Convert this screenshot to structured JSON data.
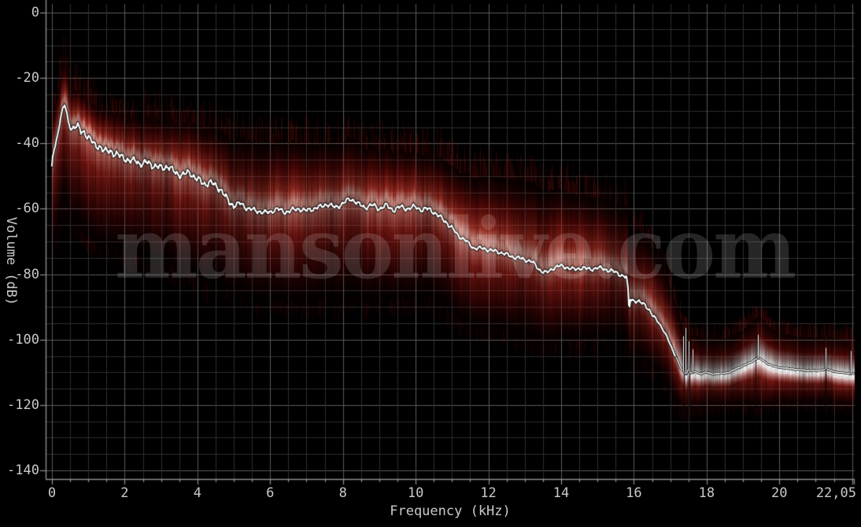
{
  "chart_data": {
    "type": "area",
    "subtype": "audio-frequency-analysis-spectrum",
    "xlabel": "Frequency (kHz)",
    "ylabel": "Volume (dB)",
    "xlim": [
      0,
      22.05
    ],
    "ylim": [
      -142.6,
      2.6
    ],
    "x_ticks": [
      {
        "v": 0,
        "label": "0"
      },
      {
        "v": 2,
        "label": "2"
      },
      {
        "v": 4,
        "label": "4"
      },
      {
        "v": 6,
        "label": "6"
      },
      {
        "v": 8,
        "label": "8"
      },
      {
        "v": 10,
        "label": "10"
      },
      {
        "v": 12,
        "label": "12"
      },
      {
        "v": 14,
        "label": "14"
      },
      {
        "v": 16,
        "label": "16"
      },
      {
        "v": 18,
        "label": "18"
      },
      {
        "v": 20,
        "label": "20"
      },
      {
        "v": 22.05,
        "label": "22,05"
      }
    ],
    "y_ticks": [
      {
        "v": 0,
        "label": "0"
      },
      {
        "v": -20,
        "label": "-20"
      },
      {
        "v": -40,
        "label": "-40"
      },
      {
        "v": -60,
        "label": "-60"
      },
      {
        "v": -80,
        "label": "-80"
      },
      {
        "v": -100,
        "label": "-100"
      },
      {
        "v": -120,
        "label": "-120"
      },
      {
        "v": -140,
        "label": "-140"
      }
    ],
    "grid": {
      "minor_x_step_khz": 0.5,
      "major_x_step_khz": 2,
      "minor_y_step_db": 5,
      "major_y_step_db": 20,
      "visible": true
    },
    "legend": "none",
    "watermark": "mansonlive.com",
    "colors": {
      "background": "#000000",
      "grid_minor": "#2e2e2e",
      "grid_major": "#5a5a5a",
      "axis": "#8f8f8f",
      "tick_label": "#c9c9c9",
      "average_line": "#ffffff",
      "line_outline": "#000000",
      "cloud_deep_red": "#500202",
      "cloud_red": "#981010",
      "cloud_bright": "#f0a89c",
      "white_band": "#ffffff"
    },
    "series": {
      "average_level_db": [
        [
          0,
          -47.3
        ],
        [
          0.02,
          -44
        ],
        [
          0.06,
          -42
        ],
        [
          0.1,
          -40.5
        ],
        [
          0.15,
          -37.5
        ],
        [
          0.2,
          -34.5
        ],
        [
          0.25,
          -31.5
        ],
        [
          0.3,
          -29.2
        ],
        [
          0.35,
          -28.2
        ],
        [
          0.4,
          -30.5
        ],
        [
          0.45,
          -33.5
        ],
        [
          0.5,
          -35
        ],
        [
          0.55,
          -35.5
        ],
        [
          0.62,
          -34.6
        ],
        [
          0.7,
          -34.8
        ],
        [
          0.8,
          -36.5
        ],
        [
          0.9,
          -36.6
        ],
        [
          1,
          -38
        ],
        [
          1.1,
          -39.5
        ],
        [
          1.2,
          -41
        ],
        [
          1.3,
          -40.6
        ],
        [
          1.4,
          -42
        ],
        [
          1.5,
          -42.6
        ],
        [
          1.6,
          -42.2
        ],
        [
          1.7,
          -43
        ],
        [
          1.8,
          -43.6
        ],
        [
          1.9,
          -44
        ],
        [
          2,
          -44.4
        ],
        [
          2.1,
          -45.2
        ],
        [
          2.2,
          -45.6
        ],
        [
          2.3,
          -45
        ],
        [
          2.4,
          -46
        ],
        [
          2.5,
          -46.4
        ],
        [
          2.6,
          -45.8
        ],
        [
          2.7,
          -46.2
        ],
        [
          2.8,
          -46.8
        ],
        [
          2.9,
          -47.2
        ],
        [
          3,
          -47.6
        ],
        [
          3.1,
          -47.2
        ],
        [
          3.2,
          -47
        ],
        [
          3.3,
          -48.2
        ],
        [
          3.4,
          -49
        ],
        [
          3.5,
          -49.4
        ],
        [
          3.6,
          -49.6
        ],
        [
          3.7,
          -49.2
        ],
        [
          3.8,
          -49
        ],
        [
          3.9,
          -50
        ],
        [
          4,
          -51
        ],
        [
          4.1,
          -51.8
        ],
        [
          4.2,
          -52.4
        ],
        [
          4.3,
          -52
        ],
        [
          4.4,
          -52.2
        ],
        [
          4.5,
          -53
        ],
        [
          4.6,
          -53.6
        ],
        [
          4.7,
          -55
        ],
        [
          4.8,
          -57
        ],
        [
          4.9,
          -58.2
        ],
        [
          5,
          -59
        ],
        [
          5.1,
          -58.6
        ],
        [
          5.2,
          -58.4
        ],
        [
          5.3,
          -59.4
        ],
        [
          5.4,
          -60
        ],
        [
          5.5,
          -60.2
        ],
        [
          5.6,
          -60.6
        ],
        [
          5.7,
          -60.8
        ],
        [
          5.8,
          -61
        ],
        [
          5.9,
          -61.2
        ],
        [
          6,
          -61
        ],
        [
          6.1,
          -60.4
        ],
        [
          6.2,
          -60
        ],
        [
          6.3,
          -60.6
        ],
        [
          6.4,
          -61
        ],
        [
          6.5,
          -60.8
        ],
        [
          6.6,
          -60.4
        ],
        [
          6.7,
          -60.2
        ],
        [
          6.8,
          -60
        ],
        [
          6.9,
          -60.4
        ],
        [
          7,
          -60.6
        ],
        [
          7.1,
          -60.2
        ],
        [
          7.2,
          -60
        ],
        [
          7.3,
          -59.6
        ],
        [
          7.4,
          -59.4
        ],
        [
          7.5,
          -58.8
        ],
        [
          7.6,
          -58.6
        ],
        [
          7.7,
          -59.2
        ],
        [
          7.8,
          -59.6
        ],
        [
          7.9,
          -59
        ],
        [
          8,
          -58.4
        ],
        [
          8.1,
          -57.6
        ],
        [
          8.2,
          -57
        ],
        [
          8.3,
          -57.4
        ],
        [
          8.4,
          -58.4
        ],
        [
          8.5,
          -59
        ],
        [
          8.6,
          -59.6
        ],
        [
          8.7,
          -59.2
        ],
        [
          8.8,
          -58.8
        ],
        [
          8.9,
          -59.4
        ],
        [
          9,
          -60
        ],
        [
          9.1,
          -59.4
        ],
        [
          9.2,
          -59
        ],
        [
          9.3,
          -59.8
        ],
        [
          9.4,
          -60.4
        ],
        [
          9.5,
          -59.8
        ],
        [
          9.6,
          -59.4
        ],
        [
          9.7,
          -59.8
        ],
        [
          9.8,
          -60
        ],
        [
          9.9,
          -59.6
        ],
        [
          10,
          -59.4
        ],
        [
          10.1,
          -60
        ],
        [
          10.2,
          -60.4
        ],
        [
          10.3,
          -60
        ],
        [
          10.4,
          -60.2
        ],
        [
          10.5,
          -61
        ],
        [
          10.6,
          -62
        ],
        [
          10.7,
          -62.8
        ],
        [
          10.8,
          -63.6
        ],
        [
          10.9,
          -64.8
        ],
        [
          11,
          -66
        ],
        [
          11.1,
          -67.2
        ],
        [
          11.2,
          -68.4
        ],
        [
          11.3,
          -69.2
        ],
        [
          11.4,
          -70
        ],
        [
          11.5,
          -71
        ],
        [
          11.6,
          -72
        ],
        [
          11.7,
          -72.2
        ],
        [
          11.8,
          -72
        ],
        [
          11.9,
          -72.2
        ],
        [
          12,
          -72.6
        ],
        [
          12.1,
          -72.8
        ],
        [
          12.2,
          -73
        ],
        [
          12.3,
          -73.2
        ],
        [
          12.4,
          -73.6
        ],
        [
          12.5,
          -74
        ],
        [
          12.6,
          -74.4
        ],
        [
          12.7,
          -74.8
        ],
        [
          12.8,
          -75
        ],
        [
          12.9,
          -75.2
        ],
        [
          13,
          -75.6
        ],
        [
          13.1,
          -75.8
        ],
        [
          13.2,
          -76.2
        ],
        [
          13.3,
          -77.4
        ],
        [
          13.4,
          -78.6
        ],
        [
          13.5,
          -79.2
        ],
        [
          13.6,
          -79.6
        ],
        [
          13.7,
          -78.8
        ],
        [
          13.8,
          -78
        ],
        [
          13.9,
          -77.6
        ],
        [
          14,
          -77.5
        ],
        [
          14.1,
          -77.8
        ],
        [
          14.2,
          -78
        ],
        [
          14.3,
          -78.4
        ],
        [
          14.4,
          -78.6
        ],
        [
          14.5,
          -78.2
        ],
        [
          14.6,
          -78
        ],
        [
          14.7,
          -78.3
        ],
        [
          14.8,
          -78.6
        ],
        [
          14.9,
          -78.3
        ],
        [
          15,
          -78
        ],
        [
          15.1,
          -78.2
        ],
        [
          15.2,
          -78.5
        ],
        [
          15.3,
          -78.8
        ],
        [
          15.4,
          -79
        ],
        [
          15.5,
          -79.5
        ],
        [
          15.6,
          -80
        ],
        [
          15.7,
          -80.5
        ],
        [
          15.8,
          -81
        ],
        [
          15.84,
          -85
        ],
        [
          15.87,
          -91.5
        ],
        [
          15.9,
          -87.5
        ],
        [
          16,
          -88
        ],
        [
          16.1,
          -88.4
        ],
        [
          16.2,
          -88.8
        ],
        [
          16.3,
          -89.2
        ],
        [
          16.4,
          -90.5
        ],
        [
          16.5,
          -92.5
        ],
        [
          16.6,
          -93.8
        ],
        [
          16.7,
          -95
        ],
        [
          16.8,
          -97
        ],
        [
          16.9,
          -99
        ],
        [
          17,
          -101.5
        ],
        [
          17.1,
          -104
        ],
        [
          17.2,
          -106.5
        ],
        [
          17.3,
          -109
        ],
        [
          17.4,
          -110.2
        ],
        [
          17.45,
          -110.5
        ],
        [
          17.5,
          -108.8
        ],
        [
          17.55,
          -110
        ],
        [
          17.6,
          -110.2
        ],
        [
          17.7,
          -109.8
        ],
        [
          17.8,
          -110.4
        ],
        [
          17.9,
          -110.2
        ],
        [
          18,
          -110
        ],
        [
          18.1,
          -110.3
        ],
        [
          18.2,
          -110.5
        ],
        [
          18.3,
          -110.3
        ],
        [
          18.4,
          -110.4
        ],
        [
          18.5,
          -110.2
        ],
        [
          18.6,
          -110
        ],
        [
          18.7,
          -109.6
        ],
        [
          18.8,
          -109
        ],
        [
          18.9,
          -108.5
        ],
        [
          19,
          -108
        ],
        [
          19.1,
          -107.5
        ],
        [
          19.2,
          -107
        ],
        [
          19.3,
          -106.3
        ],
        [
          19.4,
          -105.6
        ],
        [
          19.5,
          -106
        ],
        [
          19.6,
          -106.8
        ],
        [
          19.7,
          -107.5
        ],
        [
          19.8,
          -108
        ],
        [
          19.9,
          -108.3
        ],
        [
          20,
          -108.5
        ],
        [
          20.2,
          -108.8
        ],
        [
          20.4,
          -109
        ],
        [
          20.6,
          -109.3
        ],
        [
          20.8,
          -109.4
        ],
        [
          21,
          -109.5
        ],
        [
          21.2,
          -109.2
        ],
        [
          21.3,
          -109
        ],
        [
          21.4,
          -109.4
        ],
        [
          21.6,
          -110
        ],
        [
          21.8,
          -110.2
        ],
        [
          22.05,
          -110.5
        ]
      ],
      "range_top_offset_db": [
        [
          0,
          15
        ],
        [
          0.35,
          15
        ],
        [
          0.7,
          13
        ],
        [
          1,
          13
        ],
        [
          1.5,
          14
        ],
        [
          2,
          15
        ],
        [
          2.5,
          15.5
        ],
        [
          3,
          16.5
        ],
        [
          3.5,
          17
        ],
        [
          4,
          18.5
        ],
        [
          4.5,
          19
        ],
        [
          5,
          22
        ],
        [
          5.5,
          23
        ],
        [
          6,
          23
        ],
        [
          6.5,
          23
        ],
        [
          7,
          22
        ],
        [
          7.5,
          21.5
        ],
        [
          8,
          21
        ],
        [
          8.5,
          20.5
        ],
        [
          9,
          20
        ],
        [
          9.5,
          19.5
        ],
        [
          10,
          19
        ],
        [
          10.5,
          19
        ],
        [
          11,
          21
        ],
        [
          11.5,
          23
        ],
        [
          12,
          24.5
        ],
        [
          12.5,
          25.5
        ],
        [
          13,
          26
        ],
        [
          13.5,
          27
        ],
        [
          14,
          25.5
        ],
        [
          14.5,
          24.5
        ],
        [
          15,
          23.5
        ],
        [
          15.5,
          23
        ],
        [
          16,
          24
        ],
        [
          16.5,
          22
        ],
        [
          17,
          19
        ],
        [
          17.3,
          16
        ],
        [
          17.5,
          13.5
        ],
        [
          18,
          12.5
        ],
        [
          18.5,
          12.5
        ],
        [
          19,
          13
        ],
        [
          19.45,
          15
        ],
        [
          19.8,
          13
        ],
        [
          20,
          12.5
        ],
        [
          20.5,
          12
        ],
        [
          21,
          12
        ],
        [
          21.5,
          12
        ],
        [
          22.05,
          12
        ]
      ],
      "range_bottom_offset_db": [
        [
          0,
          30
        ],
        [
          0.5,
          31
        ],
        [
          1,
          32
        ],
        [
          2,
          30
        ],
        [
          3,
          31
        ],
        [
          4,
          32
        ],
        [
          5,
          30
        ],
        [
          6,
          29
        ],
        [
          7,
          30
        ],
        [
          8,
          31
        ],
        [
          9,
          30
        ],
        [
          10,
          29
        ],
        [
          10.5,
          28
        ],
        [
          11,
          27
        ],
        [
          11.5,
          26
        ],
        [
          12,
          25.5
        ],
        [
          12.5,
          25
        ],
        [
          13,
          24.5
        ],
        [
          13.5,
          24
        ],
        [
          14,
          23.5
        ],
        [
          14.5,
          23
        ],
        [
          15,
          22.5
        ],
        [
          15.5,
          21.5
        ],
        [
          16,
          20
        ],
        [
          16.5,
          18
        ],
        [
          17,
          15.5
        ],
        [
          17.5,
          13
        ],
        [
          18,
          11.5
        ],
        [
          18.5,
          11.5
        ],
        [
          19,
          13
        ],
        [
          19.45,
          17
        ],
        [
          19.8,
          13
        ],
        [
          20,
          12
        ],
        [
          20.5,
          11.5
        ],
        [
          21,
          11
        ],
        [
          21.5,
          11
        ],
        [
          22.05,
          11
        ]
      ]
    },
    "white_band_ramp_khz": [
      16.9,
      17.45
    ],
    "spikes": {
      "dark_notch_lines": [
        [
          15.85,
          -62,
          -88
        ],
        [
          17.38,
          -99,
          -133
        ],
        [
          17.52,
          -100,
          -124
        ],
        [
          19.35,
          -95,
          -128
        ],
        [
          21.28,
          -100,
          -124
        ]
      ],
      "white_spikes": [
        [
          17.36,
          -99
        ],
        [
          17.42,
          -96.5
        ],
        [
          17.5,
          -100.5
        ],
        [
          17.62,
          -103
        ],
        [
          19.4,
          -98.5
        ],
        [
          21.28,
          -102.5
        ],
        [
          21.97,
          -103.5
        ]
      ]
    }
  }
}
